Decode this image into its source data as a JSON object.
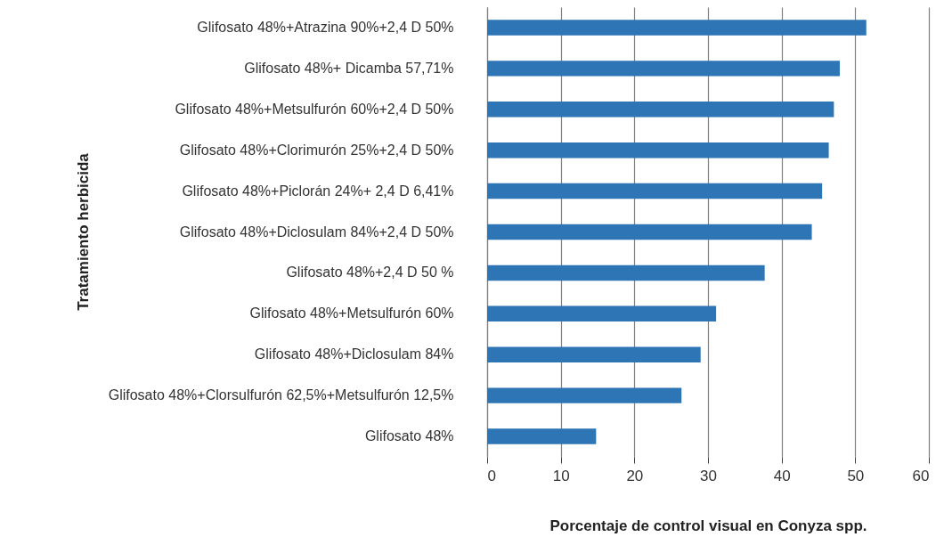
{
  "chart_data": {
    "type": "bar",
    "orientation": "horizontal",
    "xlabel": "Porcentaje de control visual en Conyza spp.",
    "ylabel": "Tratamiento herbicida",
    "categories": [
      "Glifosato 48%+Atrazina 90%+2,4 D 50%",
      "Glifosato 48%+ Dicamba 57,71%",
      "Glifosato 48%+Metsulfurón 60%+2,4 D 50%",
      "Glifosato 48%+Clorimurón 25%+2,4 D 50%",
      "Glifosato 48%+Piclorán 24%+ 2,4 D 6,41%",
      "Glifosato 48%+Diclosulam 84%+2,4 D 50%",
      "Glifosato 48%+2,4 D 50 %",
      "Glifosato 48%+Metsulfurón 60%",
      "Glifosato 48%+Diclosulam 84%",
      "Glifosato 48%+Clorsulfurón 62,5%+Metsulfurón 12,5%",
      "Glifosato 48%"
    ],
    "values": [
      51.5,
      47.9,
      47.1,
      46.4,
      45.5,
      44.1,
      37.7,
      31.1,
      29.0,
      26.4,
      14.8
    ],
    "color": "#2e75b6",
    "xlim": [
      0,
      60
    ],
    "xticks": [
      0,
      10,
      20,
      30,
      40,
      50,
      60
    ],
    "grid": "x"
  }
}
